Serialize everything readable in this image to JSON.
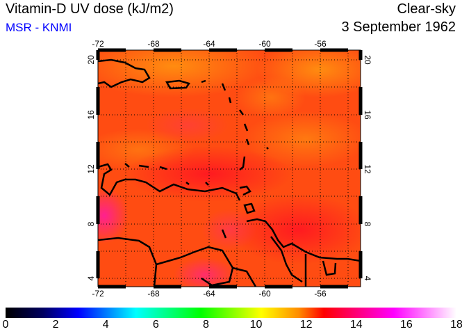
{
  "title": "Vitamin-D UV dose (kJ/m2)",
  "subtitle": "MSR - KNMI",
  "sky": "Clear-sky",
  "date": "3 September 1962",
  "lon_ticks": [
    "-72",
    "-68",
    "-64",
    "-60",
    "-56"
  ],
  "lat_ticks": [
    "20",
    "16",
    "12",
    "8",
    "4"
  ],
  "colorbar": {
    "labels": [
      "0",
      "2",
      "4",
      "6",
      "8",
      "10",
      "12",
      "14",
      "16",
      "18"
    ],
    "min": 0,
    "max": 18,
    "stops": [
      [
        0,
        "#000000"
      ],
      [
        1.5,
        "#000060"
      ],
      [
        2.9,
        "#0000ff"
      ],
      [
        5.2,
        "#00ffff"
      ],
      [
        7.8,
        "#00ff00"
      ],
      [
        10.2,
        "#ffff00"
      ],
      [
        11.7,
        "#ff8c00"
      ],
      [
        12.7,
        "#ff0000"
      ],
      [
        15.5,
        "#ff00ff"
      ],
      [
        18,
        "#ffffff"
      ]
    ]
  },
  "colors": {
    "field_base": "#ff4c12",
    "field_orange": "#ff8a10",
    "field_pink": "#ff2080"
  }
}
